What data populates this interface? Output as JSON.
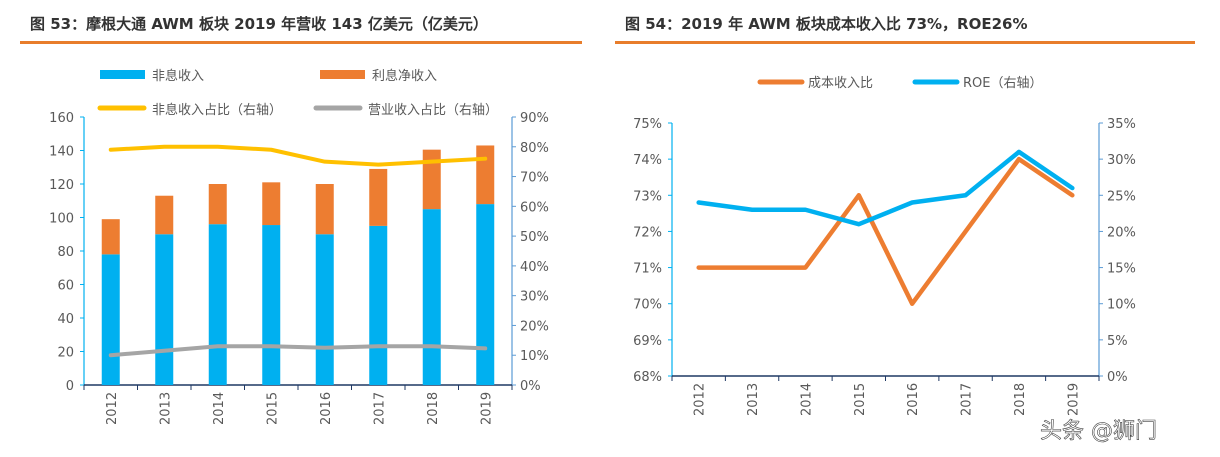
{
  "chart_data": [
    {
      "type": "bar",
      "title": "图 53：摩根大通 AWM 板块 2019 年营收 143 亿美元（亿美元）",
      "categories": [
        "2012",
        "2013",
        "2014",
        "2015",
        "2016",
        "2017",
        "2018",
        "2019"
      ],
      "stacked": true,
      "ylim": [
        0,
        160
      ],
      "yticks": [
        "0",
        "20",
        "40",
        "60",
        "80",
        "100",
        "120",
        "140",
        "160"
      ],
      "y2lim": [
        0,
        90
      ],
      "y2ticks": [
        "0%",
        "10%",
        "20%",
        "30%",
        "40%",
        "50%",
        "60%",
        "70%",
        "80%",
        "90%"
      ],
      "legend_position": "top",
      "grid": false,
      "series": [
        {
          "name": "非息收入",
          "kind": "bar",
          "axis": "left",
          "color": "#00b0f0",
          "values": [
            78,
            90,
            96,
            95.5,
            90,
            95,
            105,
            108
          ]
        },
        {
          "name": "利息净收入",
          "kind": "bar",
          "axis": "left",
          "color": "#ed7d31",
          "values": [
            21,
            23,
            24,
            25.5,
            30,
            34,
            35.5,
            35
          ]
        },
        {
          "name": "非息收入占比（右轴）",
          "kind": "line",
          "axis": "right",
          "color": "#ffc000",
          "values": [
            79,
            80,
            80,
            79,
            75,
            74,
            75,
            76
          ]
        },
        {
          "name": "营业收入占比（右轴）",
          "kind": "line",
          "axis": "right",
          "color": "#a5a5a5",
          "values": [
            10,
            11.5,
            13,
            13,
            12.5,
            13,
            13,
            12.3
          ]
        }
      ]
    },
    {
      "type": "line",
      "title": "图 54：2019 年 AWM 板块成本收入比 73%，ROE26%",
      "categories": [
        "2012",
        "2013",
        "2014",
        "2015",
        "2016",
        "2017",
        "2018",
        "2019"
      ],
      "ylim": [
        68,
        75
      ],
      "yticks": [
        "68%",
        "69%",
        "70%",
        "71%",
        "72%",
        "73%",
        "74%",
        "75%"
      ],
      "y2lim": [
        0,
        35
      ],
      "y2ticks": [
        "0%",
        "5%",
        "10%",
        "15%",
        "20%",
        "25%",
        "30%",
        "35%"
      ],
      "legend_position": "top",
      "grid": false,
      "series": [
        {
          "name": "成本收入比",
          "axis": "left",
          "color": "#ed7d31",
          "values": [
            71,
            71,
            71,
            73,
            70,
            72,
            74,
            73
          ]
        },
        {
          "name": "ROE（右轴）",
          "axis": "right",
          "color": "#00b0f0",
          "values": [
            24,
            23,
            23,
            21,
            24,
            25,
            31,
            26
          ]
        }
      ]
    }
  ],
  "watermark": "头条 @狮门",
  "accent_color": "#e87d2b"
}
